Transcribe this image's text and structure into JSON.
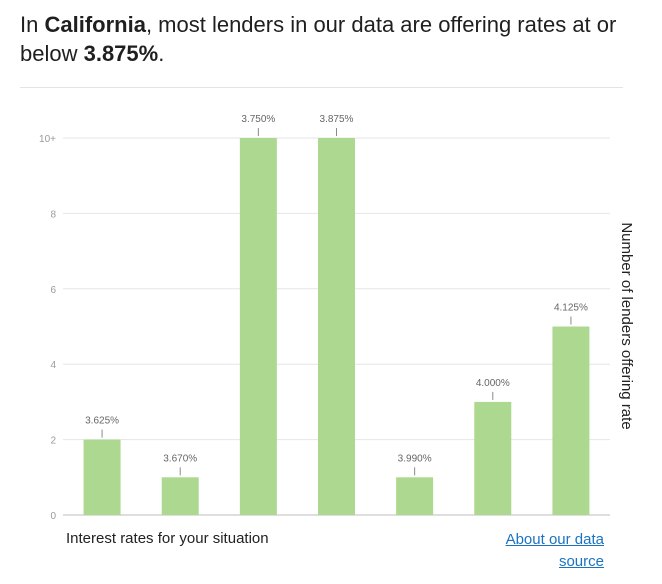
{
  "headline": {
    "prefix": "In ",
    "state": "California",
    "middle": ", most lenders in our data are offering rates at or below ",
    "rate": "3.875%",
    "suffix": "."
  },
  "footer": {
    "x_title": "Interest rates for your situation",
    "source_link": "About our data source"
  },
  "colors": {
    "bar": "#acd98f",
    "grid": "#e6e6e6",
    "axis": "#bdbdbd",
    "link": "#1a73c2"
  },
  "chart_data": {
    "type": "bar",
    "categories": [
      "3.625%",
      "3.670%",
      "3.750%",
      "3.875%",
      "3.990%",
      "4.000%",
      "4.125%"
    ],
    "values": [
      2,
      1,
      10,
      10,
      1,
      3,
      5
    ],
    "data_labels": [
      "3.625%",
      "3.670%",
      "3.750%",
      "3.875%",
      "3.990%",
      "4.000%",
      "4.125%"
    ],
    "xlabel": "Interest rates for your situation",
    "ylabel": "Number of lenders offering rate",
    "yticks": [
      "0",
      "2",
      "4",
      "6",
      "8",
      "10+"
    ],
    "ylim": [
      0,
      10
    ],
    "grid": true,
    "legend": "none"
  }
}
